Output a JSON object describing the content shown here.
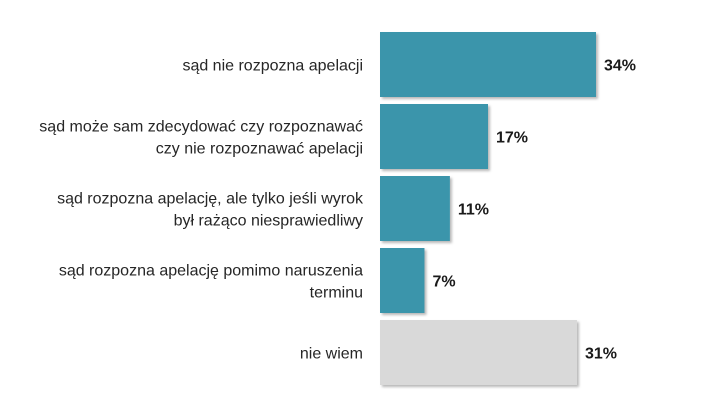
{
  "chart_data": {
    "type": "bar",
    "orientation": "horizontal",
    "categories": [
      [
        "sąd nie rozpozna apelacji"
      ],
      [
        "sąd może sam zdecydować czy rozpoznawać",
        "czy nie rozpoznawać apelacji"
      ],
      [
        "sąd rozpozna apelację, ale tylko jeśli wyrok",
        "był rażąco niesprawiedliwy"
      ],
      [
        "sąd rozpozna apelację pomimo naruszenia",
        "terminu"
      ],
      [
        "nie wiem"
      ]
    ],
    "values": [
      34,
      17,
      11,
      7,
      31
    ],
    "value_labels": [
      "34%",
      "17%",
      "11%",
      "7%",
      "31%"
    ],
    "bar_colors": [
      "#3a95ab",
      "#3a95ab",
      "#3a95ab",
      "#3a95ab",
      "#d9d9d9"
    ],
    "unit": "%",
    "xlim": [
      0,
      34
    ],
    "grid": false,
    "legend": "none"
  }
}
